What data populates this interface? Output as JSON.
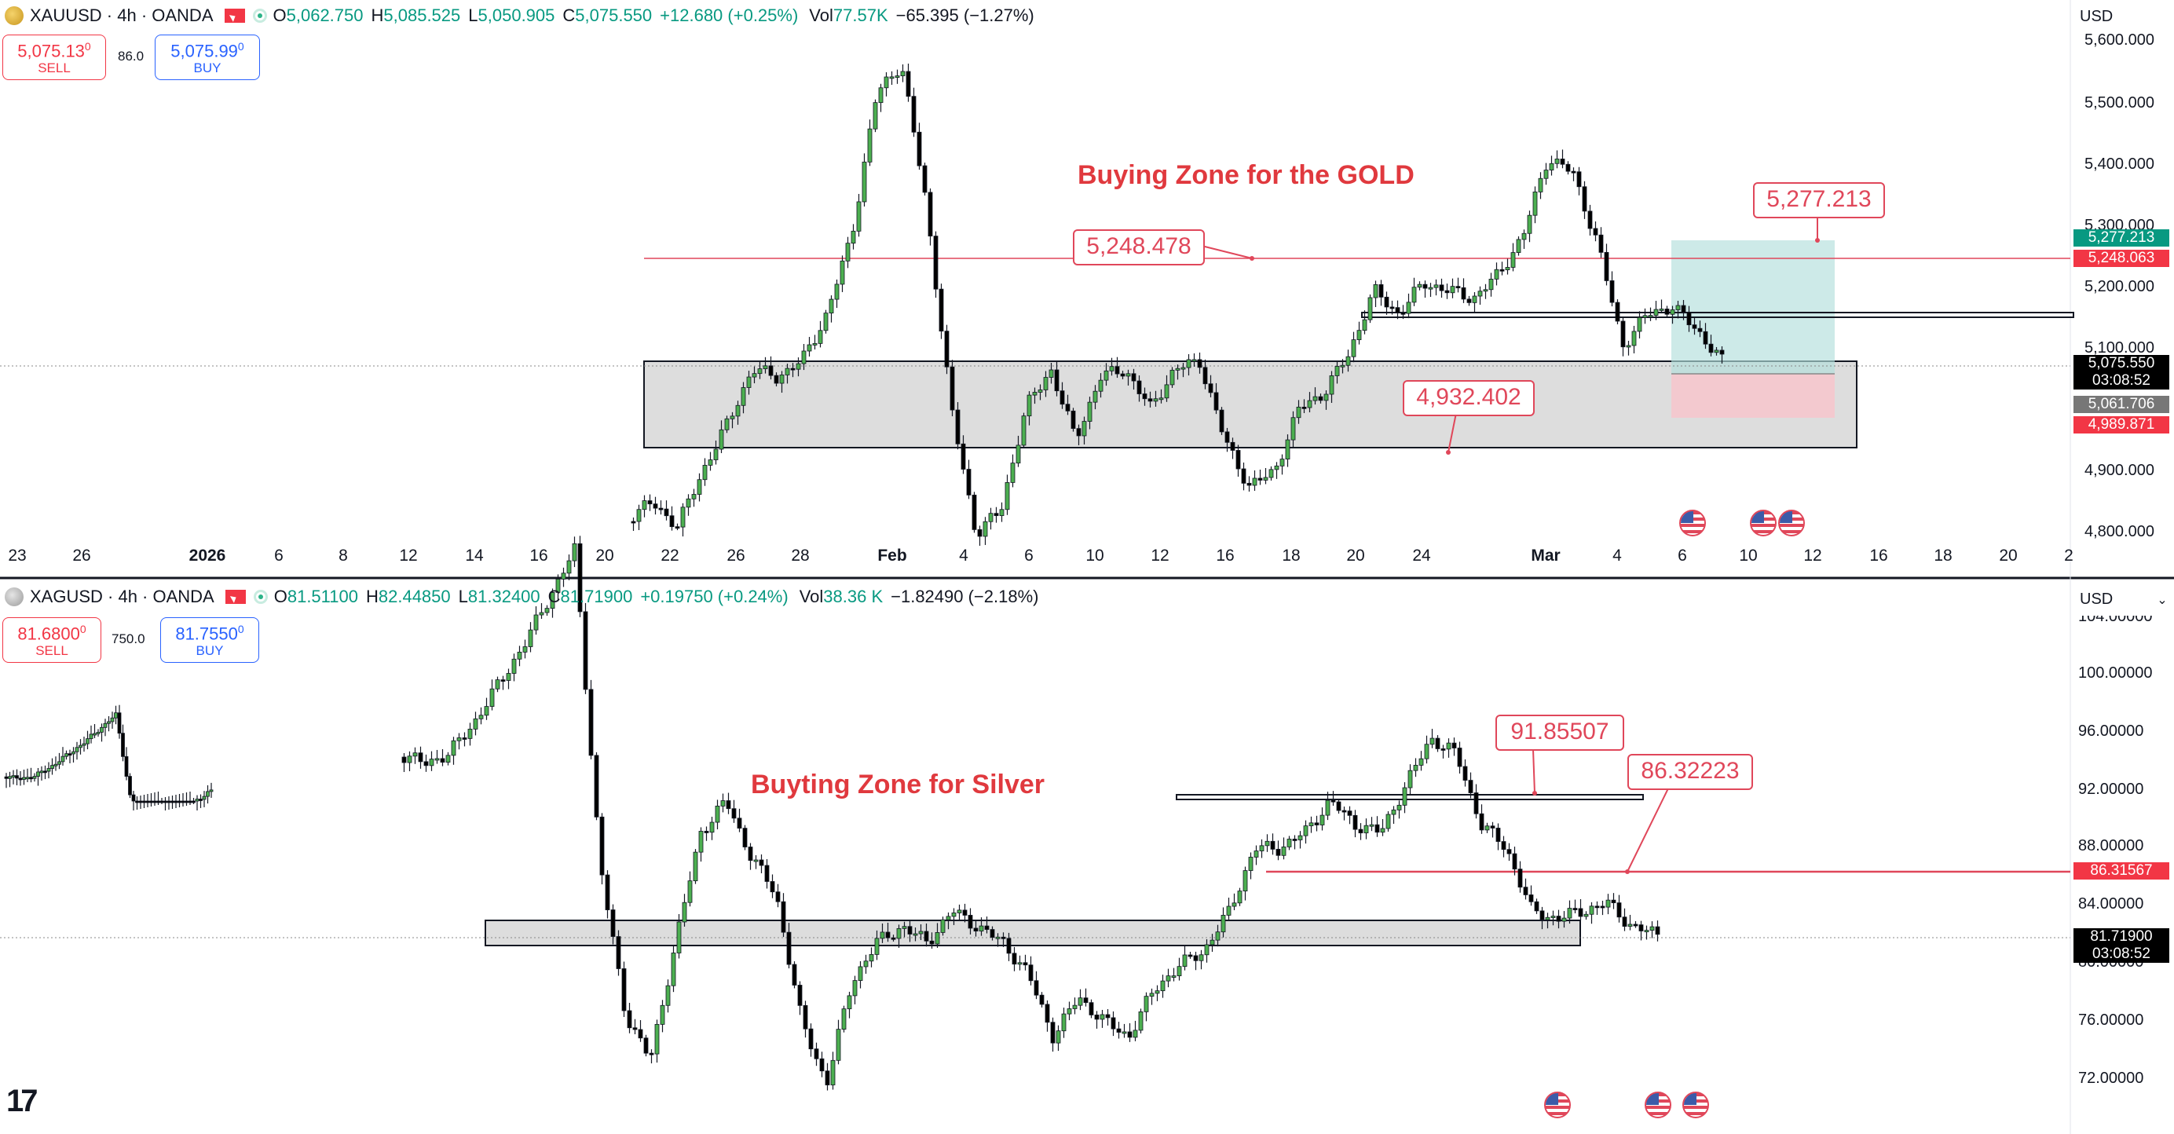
{
  "gold": {
    "symbol": "XAUUSD · 4h · OANDA",
    "ohlc": [
      {
        "k": "O",
        "v": "5,062.750"
      },
      {
        "k": "H",
        "v": "5,085.525"
      },
      {
        "k": "L",
        "v": "5,050.905"
      },
      {
        "k": "C",
        "v": "5,075.550"
      }
    ],
    "change": "+12.680 (+0.25%)",
    "vol_label": "Vol",
    "vol_value": "77.57K",
    "vol_change": "−65.395 (−1.27%)",
    "sell_price": "5,075.13",
    "sell_sup": "0",
    "sell_label": "SELL",
    "spread": "86.0",
    "buy_price": "5,075.99",
    "buy_sup": "0",
    "buy_label": "BUY",
    "currency": "USD",
    "price_axis": [
      "5,600.000",
      "5,500.000",
      "5,400.000",
      "5,300.000",
      "5,200.000",
      "5,100.000",
      "4,900.000",
      "4,800.000"
    ],
    "time_axis": [
      "23",
      "26",
      "2026",
      "6",
      "8",
      "12",
      "14",
      "16",
      "20",
      "22",
      "26",
      "28",
      "Feb",
      "4",
      "6",
      "10",
      "12",
      "16",
      "18",
      "20",
      "24",
      "Mar",
      "4",
      "6",
      "10",
      "12",
      "16",
      "18",
      "20",
      "2"
    ],
    "tags": {
      "target": "5,277.213",
      "level": "5,248.063",
      "last": "5,075.550",
      "countdown": "03:08:52",
      "entry": "5,061.706",
      "stop": "4,989.871"
    },
    "zone_title": "Buying Zone for the GOLD",
    "callouts": {
      "c1": "5,248.478",
      "c2": "5,277.213",
      "c3": "4,932.402"
    },
    "colors": {
      "up": "#089981",
      "down": "#000000",
      "candle_up": "#4caf50",
      "zone": "#d4d4d4",
      "target": "#b2dfdb",
      "stop": "#f7c5cc",
      "callout": "#e0475a"
    }
  },
  "silver": {
    "symbol": "XAGUSD · 4h · OANDA",
    "ohlc": [
      {
        "k": "O",
        "v": "81.51100"
      },
      {
        "k": "H",
        "v": "82.44850"
      },
      {
        "k": "L",
        "v": "81.32400"
      },
      {
        "k": "C",
        "v": "81.71900"
      }
    ],
    "change": "+0.19750 (+0.24%)",
    "vol_label": "Vol",
    "vol_value": "38.36 K",
    "vol_change": "−1.82490 (−2.18%)",
    "sell_price": "81.6800",
    "sell_sup": "0",
    "sell_label": "SELL",
    "spread": "750.0",
    "buy_price": "81.7550",
    "buy_sup": "0",
    "buy_label": "BUY",
    "currency": "USD",
    "price_axis": [
      "104.00000",
      "100.00000",
      "96.00000",
      "92.00000",
      "88.00000",
      "84.00000",
      "80.00000",
      "76.00000",
      "72.00000"
    ],
    "tags": {
      "level": "86.31567",
      "last": "81.71900",
      "countdown": "03:08:52"
    },
    "zone_title": "Buyting Zone for Silver",
    "callouts": {
      "c1": "91.85507",
      "c2": "86.32223"
    }
  }
}
